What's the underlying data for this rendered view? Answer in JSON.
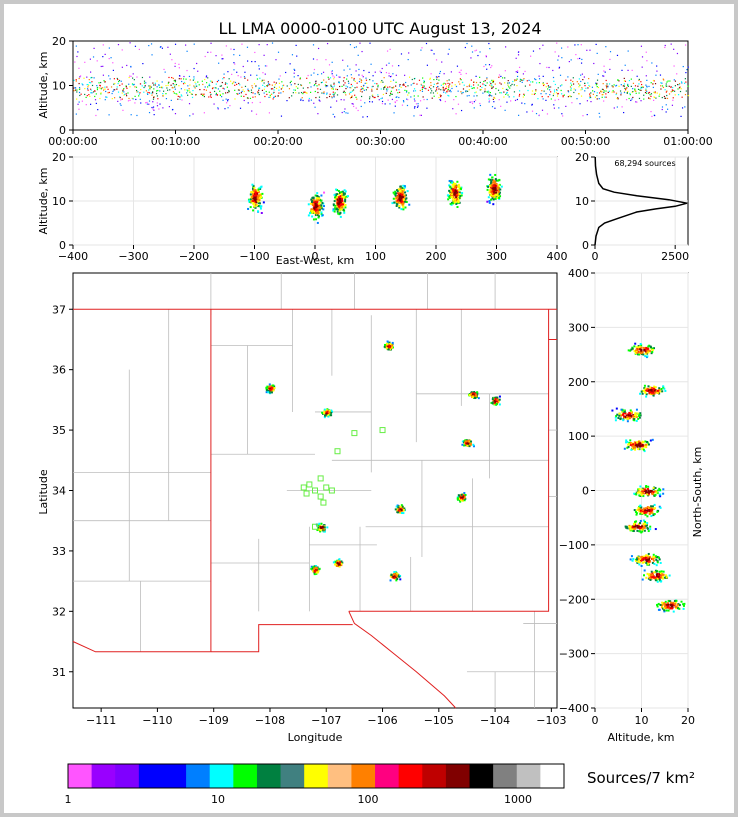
{
  "title": "LL LMA 0000-0100 UTC August 13, 2024",
  "sources_annotation": "68,294 sources",
  "colorbar": {
    "label": "Sources/7 km²",
    "tick_labels": [
      "1",
      "10",
      "100",
      "1000"
    ],
    "colors": [
      "#ff55ff",
      "#9900ff",
      "#7f00ff",
      "#0000ff",
      "#0000ff",
      "#007fff",
      "#00ffff",
      "#00ff00",
      "#008040",
      "#408080",
      "#ffff00",
      "#ffbf80",
      "#ff8000",
      "#ff0080",
      "#ff0000",
      "#bf0000",
      "#800000",
      "#000000",
      "#808080",
      "#c0c0c0",
      "#ffffff"
    ]
  },
  "chart_data": [
    {
      "type": "scatter",
      "name": "altitude-time",
      "xlabel": "",
      "ylabel": "Altitude, km",
      "x_tick_labels": [
        "00:00:00",
        "00:10:00",
        "00:20:00",
        "00:30:00",
        "00:40:00",
        "00:50:00",
        "01:00:00"
      ],
      "xlim": [
        "00:00:00",
        "01:00:00"
      ],
      "ylim": [
        0,
        20
      ],
      "y_ticks": [
        0,
        10,
        20
      ]
    },
    {
      "type": "heatmap",
      "name": "altitude-east-west",
      "xlabel": "East-West, km",
      "ylabel": "Altitude, km",
      "xlim": [
        -400,
        400
      ],
      "ylim": [
        0,
        20
      ],
      "x_ticks": [
        -400,
        -300,
        -200,
        -100,
        0,
        100,
        200,
        300,
        400
      ],
      "y_ticks": [
        0,
        10,
        20
      ],
      "grid": true,
      "clusters": [
        {
          "x": -100,
          "alt": 11
        },
        {
          "x": 0,
          "alt": 9
        },
        {
          "x": 40,
          "alt": 10
        },
        {
          "x": 140,
          "alt": 11
        },
        {
          "x": 230,
          "alt": 12
        },
        {
          "x": 295,
          "alt": 13
        }
      ]
    },
    {
      "type": "line",
      "name": "altitude-histogram",
      "xlabel": "",
      "ylabel": "",
      "xlim": [
        0,
        2900
      ],
      "ylim": [
        0,
        20
      ],
      "x_ticks": [
        0,
        2500
      ],
      "y_ticks": [
        0,
        10,
        20
      ],
      "grid": true,
      "series": [
        {
          "points": [
            [
              0,
              0
            ],
            [
              30,
              2
            ],
            [
              120,
              4
            ],
            [
              300,
              5
            ],
            [
              700,
              6
            ],
            [
              1300,
              7.5
            ],
            [
              1900,
              8.2
            ],
            [
              2500,
              8.8
            ],
            [
              2870,
              9.5
            ],
            [
              2300,
              10.3
            ],
            [
              1300,
              11.2
            ],
            [
              600,
              12
            ],
            [
              250,
              12.8
            ],
            [
              120,
              14
            ],
            [
              50,
              16
            ],
            [
              15,
              18
            ],
            [
              5,
              20
            ]
          ]
        }
      ]
    },
    {
      "type": "heatmap",
      "name": "plan-view-map",
      "xlabel": "Longitude",
      "ylabel": "Latitude",
      "xlim": [
        -111.5,
        -102.9
      ],
      "ylim": [
        30.4,
        37.6
      ],
      "x_ticks": [
        -111,
        -110,
        -109,
        -108,
        -107,
        -106,
        -105,
        -104,
        -103
      ],
      "y_ticks": [
        31,
        32,
        33,
        34,
        35,
        36,
        37
      ],
      "clusters": [
        {
          "lon": -107.1,
          "lat": 33.4
        },
        {
          "lon": -106.8,
          "lat": 32.8
        },
        {
          "lon": -105.7,
          "lat": 33.7
        },
        {
          "lon": -105.8,
          "lat": 32.6
        },
        {
          "lon": -104.6,
          "lat": 33.9
        },
        {
          "lon": -104.5,
          "lat": 34.8
        },
        {
          "lon": -104.0,
          "lat": 35.5
        },
        {
          "lon": -104.4,
          "lat": 35.6
        },
        {
          "lon": -108.0,
          "lat": 35.7
        },
        {
          "lon": -107.0,
          "lat": 35.3
        },
        {
          "lon": -105.9,
          "lat": 36.4
        },
        {
          "lon": -107.2,
          "lat": 32.7
        }
      ]
    },
    {
      "type": "heatmap",
      "name": "north-south-altitude",
      "xlabel": "Altitude, km",
      "ylabel": "North-South, km",
      "xlim": [
        0,
        20
      ],
      "ylim": [
        -400,
        400
      ],
      "x_ticks": [
        0,
        10,
        20
      ],
      "y_ticks": [
        -400,
        -300,
        -200,
        -100,
        0,
        100,
        200,
        300,
        400
      ],
      "grid": true
    }
  ]
}
